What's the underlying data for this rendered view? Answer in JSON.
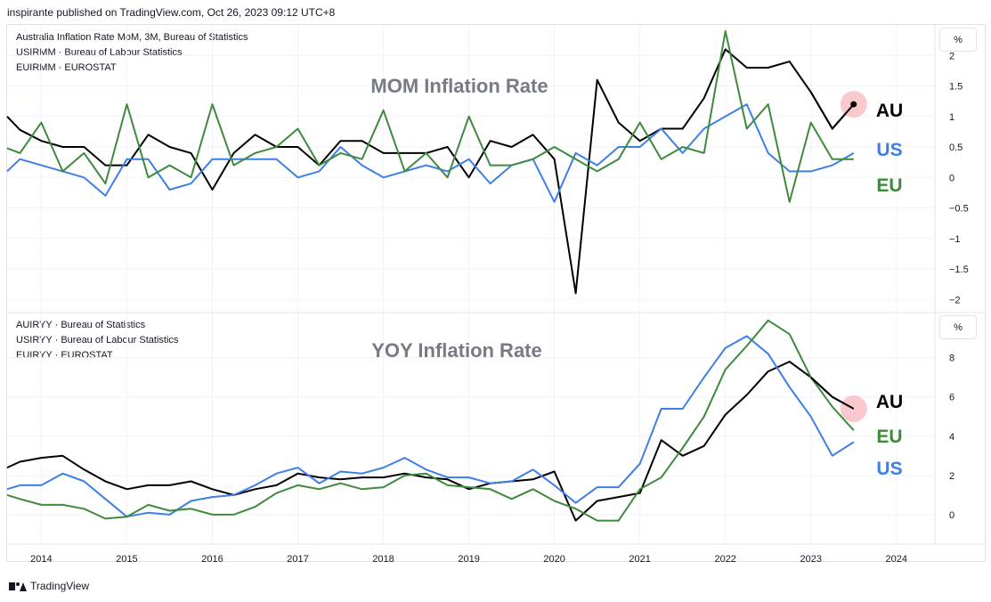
{
  "header": {
    "text": "inspirante published on TradingView.com, Oct 26, 2023 09:12 UTC+8"
  },
  "footer": {
    "brand": "TradingView"
  },
  "colors": {
    "au": "#000000",
    "us": "#3d7fe6",
    "eu": "#3e8a3c",
    "grid": "#f0f3fa",
    "axis_text": "#131722",
    "watermark": "#787b86",
    "highlight": "#f7b7bd"
  },
  "chart_data": [
    {
      "type": "line",
      "title": "MOM Inflation Rate",
      "legend": [
        "Australia Inflation Rate MoM, 3M, Bureau of Statistics",
        "USIRMM · Bureau of Labour Statistics",
        "EUIRMM · EUROSTAT"
      ],
      "unit_label": "%",
      "ylim": [
        -2.2,
        2.5
      ],
      "yticks": [
        -2,
        -1.5,
        -1,
        -0.5,
        0,
        0.5,
        1,
        1.5,
        2
      ],
      "ytick_labels": [
        "−2",
        "−1.5",
        "−1",
        "−0.5",
        "0",
        "0.5",
        "1",
        "1.5",
        "2"
      ],
      "xlim": [
        2013.6,
        2024.45
      ],
      "series": [
        {
          "name": "AU",
          "color": "#000000",
          "x": [
            2013.6,
            2013.75,
            2014.0,
            2014.25,
            2014.5,
            2014.75,
            2015.0,
            2015.25,
            2015.5,
            2015.75,
            2016.0,
            2016.25,
            2016.5,
            2016.75,
            2017.0,
            2017.25,
            2017.5,
            2017.75,
            2018.0,
            2018.25,
            2018.5,
            2018.75,
            2019.0,
            2019.25,
            2019.5,
            2019.75,
            2020.0,
            2020.25,
            2020.5,
            2020.75,
            2021.0,
            2021.25,
            2021.5,
            2021.75,
            2022.0,
            2022.25,
            2022.5,
            2022.75,
            2023.0,
            2023.25,
            2023.5
          ],
          "values": [
            1.0,
            0.78,
            0.6,
            0.5,
            0.5,
            0.2,
            0.2,
            0.7,
            0.5,
            0.4,
            -0.2,
            0.4,
            0.7,
            0.5,
            0.5,
            0.2,
            0.6,
            0.6,
            0.4,
            0.4,
            0.4,
            0.5,
            0.0,
            0.6,
            0.5,
            0.7,
            0.3,
            -1.9,
            1.6,
            0.9,
            0.6,
            0.8,
            0.8,
            1.3,
            2.1,
            1.8,
            1.8,
            1.9,
            1.4,
            0.8,
            1.2
          ]
        },
        {
          "name": "US",
          "color": "#3d7fe6",
          "x": [
            2013.6,
            2013.75,
            2014.0,
            2014.25,
            2014.5,
            2014.75,
            2015.0,
            2015.25,
            2015.5,
            2015.75,
            2016.0,
            2016.25,
            2016.5,
            2016.75,
            2017.0,
            2017.25,
            2017.5,
            2017.75,
            2018.0,
            2018.25,
            2018.5,
            2018.75,
            2019.0,
            2019.25,
            2019.5,
            2019.75,
            2020.0,
            2020.25,
            2020.5,
            2020.75,
            2021.0,
            2021.25,
            2021.5,
            2021.75,
            2022.0,
            2022.25,
            2022.5,
            2022.75,
            2023.0,
            2023.25,
            2023.5
          ],
          "values": [
            0.1,
            0.3,
            0.2,
            0.1,
            0.0,
            -0.3,
            0.3,
            0.3,
            -0.2,
            -0.1,
            0.3,
            0.3,
            0.3,
            0.3,
            0.0,
            0.1,
            0.5,
            0.2,
            0.0,
            0.1,
            0.2,
            0.1,
            0.3,
            -0.1,
            0.2,
            0.3,
            -0.4,
            0.4,
            0.2,
            0.5,
            0.5,
            0.8,
            0.4,
            0.8,
            1.0,
            1.2,
            0.4,
            0.1,
            0.1,
            0.2,
            0.4
          ]
        },
        {
          "name": "EU",
          "color": "#3e8a3c",
          "x": [
            2013.6,
            2013.75,
            2014.0,
            2014.25,
            2014.5,
            2014.75,
            2015.0,
            2015.25,
            2015.5,
            2015.75,
            2016.0,
            2016.25,
            2016.5,
            2016.75,
            2017.0,
            2017.25,
            2017.5,
            2017.75,
            2018.0,
            2018.25,
            2018.5,
            2018.75,
            2019.0,
            2019.25,
            2019.5,
            2019.75,
            2020.0,
            2020.25,
            2020.5,
            2020.75,
            2021.0,
            2021.25,
            2021.5,
            2021.75,
            2022.0,
            2022.25,
            2022.5,
            2022.75,
            2023.0,
            2023.25,
            2023.5
          ],
          "values": [
            0.48,
            0.4,
            0.9,
            0.1,
            0.4,
            -0.1,
            1.2,
            0.0,
            0.2,
            0.0,
            1.2,
            0.2,
            0.4,
            0.5,
            0.8,
            0.2,
            0.4,
            0.3,
            1.1,
            0.1,
            0.4,
            0.0,
            1.0,
            0.2,
            0.2,
            0.3,
            0.5,
            0.3,
            0.1,
            0.3,
            0.9,
            0.3,
            0.5,
            0.4,
            2.4,
            0.8,
            1.2,
            -0.4,
            0.9,
            0.3,
            0.3
          ]
        }
      ],
      "annotations": [
        {
          "text": "AU",
          "color": "#000000"
        },
        {
          "text": "US",
          "color": "#3d7fe6"
        },
        {
          "text": "EU",
          "color": "#3e8a3c"
        }
      ]
    },
    {
      "type": "line",
      "title": "YOY Inflation Rate",
      "legend": [
        "AUIRYY · Bureau of Statistics",
        "USIRYY · Bureau of Labour Statistics",
        "EUIRYY · EUROSTAT"
      ],
      "unit_label": "%",
      "ylim": [
        -1.5,
        10.3
      ],
      "yticks": [
        0,
        2,
        4,
        6,
        8
      ],
      "ytick_labels": [
        "0",
        "2",
        "4",
        "6",
        "8"
      ],
      "xlim": [
        2013.6,
        2024.45
      ],
      "series": [
        {
          "name": "AU",
          "color": "#000000",
          "x": [
            2013.6,
            2013.75,
            2014.0,
            2014.25,
            2014.5,
            2014.75,
            2015.0,
            2015.25,
            2015.5,
            2015.75,
            2016.0,
            2016.25,
            2016.5,
            2016.75,
            2017.0,
            2017.25,
            2017.5,
            2017.75,
            2018.0,
            2018.25,
            2018.5,
            2018.75,
            2019.0,
            2019.25,
            2019.5,
            2019.75,
            2020.0,
            2020.25,
            2020.5,
            2020.75,
            2021.0,
            2021.25,
            2021.5,
            2021.75,
            2022.0,
            2022.25,
            2022.5,
            2022.75,
            2023.0,
            2023.25,
            2023.5
          ],
          "values": [
            2.4,
            2.7,
            2.9,
            3.0,
            2.3,
            1.7,
            1.3,
            1.5,
            1.5,
            1.7,
            1.3,
            1.0,
            1.3,
            1.5,
            2.1,
            1.9,
            1.8,
            1.9,
            1.9,
            2.1,
            1.9,
            1.8,
            1.3,
            1.6,
            1.7,
            1.8,
            2.2,
            -0.3,
            0.7,
            0.9,
            1.1,
            3.8,
            3.0,
            3.5,
            5.1,
            6.1,
            7.3,
            7.8,
            7.0,
            6.0,
            5.4
          ]
        },
        {
          "name": "US",
          "color": "#3d7fe6",
          "x": [
            2013.6,
            2013.75,
            2014.0,
            2014.25,
            2014.5,
            2014.75,
            2015.0,
            2015.25,
            2015.5,
            2015.75,
            2016.0,
            2016.25,
            2016.5,
            2016.75,
            2017.0,
            2017.25,
            2017.5,
            2017.75,
            2018.0,
            2018.25,
            2018.5,
            2018.75,
            2019.0,
            2019.25,
            2019.5,
            2019.75,
            2020.0,
            2020.25,
            2020.5,
            2020.75,
            2021.0,
            2021.25,
            2021.5,
            2021.75,
            2022.0,
            2022.25,
            2022.5,
            2022.75,
            2023.0,
            2023.25,
            2023.5
          ],
          "values": [
            1.3,
            1.5,
            1.5,
            2.1,
            1.7,
            0.8,
            -0.1,
            0.1,
            0.0,
            0.7,
            0.9,
            1.0,
            1.5,
            2.1,
            2.4,
            1.6,
            2.2,
            2.1,
            2.4,
            2.9,
            2.3,
            1.9,
            1.9,
            1.6,
            1.7,
            2.3,
            1.5,
            0.6,
            1.4,
            1.4,
            2.6,
            5.4,
            5.4,
            7.0,
            8.5,
            9.1,
            8.2,
            6.5,
            5.0,
            3.0,
            3.7
          ]
        },
        {
          "name": "EU",
          "color": "#3e8a3c",
          "x": [
            2013.6,
            2013.75,
            2014.0,
            2014.25,
            2014.5,
            2014.75,
            2015.0,
            2015.25,
            2015.5,
            2015.75,
            2016.0,
            2016.25,
            2016.5,
            2016.75,
            2017.0,
            2017.25,
            2017.5,
            2017.75,
            2018.0,
            2018.25,
            2018.5,
            2018.75,
            2019.0,
            2019.25,
            2019.5,
            2019.75,
            2020.0,
            2020.25,
            2020.5,
            2020.75,
            2021.0,
            2021.25,
            2021.5,
            2021.75,
            2022.0,
            2022.25,
            2022.5,
            2022.75,
            2023.0,
            2023.25,
            2023.5
          ],
          "values": [
            1.0,
            0.8,
            0.5,
            0.5,
            0.3,
            -0.2,
            -0.1,
            0.5,
            0.2,
            0.3,
            0.0,
            0.0,
            0.4,
            1.1,
            1.5,
            1.3,
            1.6,
            1.3,
            1.4,
            2.0,
            2.1,
            1.5,
            1.4,
            1.3,
            0.8,
            1.3,
            0.7,
            0.3,
            -0.3,
            -0.3,
            1.3,
            1.9,
            3.4,
            5.0,
            7.4,
            8.6,
            9.9,
            9.2,
            7.0,
            5.5,
            4.3
          ]
        }
      ],
      "annotations": [
        {
          "text": "AU",
          "color": "#000000"
        },
        {
          "text": "EU",
          "color": "#3e8a3c"
        },
        {
          "text": "US",
          "color": "#3d7fe6"
        }
      ]
    }
  ],
  "x_axis": {
    "ticks": [
      2014,
      2015,
      2016,
      2017,
      2018,
      2019,
      2020,
      2021,
      2022,
      2023,
      2024
    ],
    "labels": [
      "2014",
      "2015",
      "2016",
      "2017",
      "2018",
      "2019",
      "2020",
      "2021",
      "2022",
      "2023",
      "2024"
    ]
  }
}
